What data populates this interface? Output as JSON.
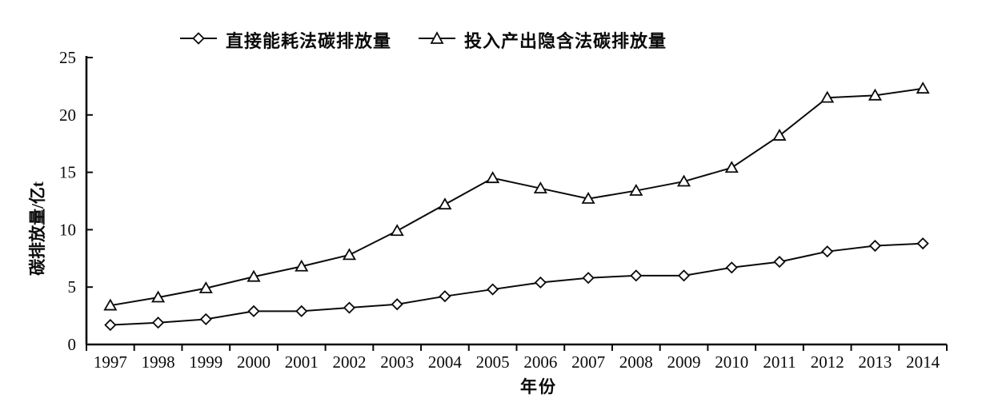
{
  "chart_data": {
    "type": "line",
    "title": "",
    "xlabel": "年份",
    "ylabel": "碳排放量/亿t",
    "categories": [
      1997,
      1998,
      1999,
      2000,
      2001,
      2002,
      2003,
      2004,
      2005,
      2006,
      2007,
      2008,
      2009,
      2010,
      2011,
      2012,
      2013,
      2014
    ],
    "ylim": [
      0,
      25
    ],
    "yticks": [
      0,
      5,
      10,
      15,
      20,
      25
    ],
    "grid": false,
    "legend_position": "top",
    "line_color": "#0a0a0a",
    "marker_fill": "#ffffff",
    "series": [
      {
        "name": "直接能耗法碳排放量",
        "marker": "diamond",
        "values": [
          1.7,
          1.9,
          2.2,
          2.9,
          2.9,
          3.2,
          3.5,
          4.2,
          4.8,
          5.4,
          5.8,
          6.0,
          6.0,
          6.7,
          7.2,
          8.1,
          8.6,
          8.8
        ]
      },
      {
        "name": "投入产出隐含法碳排放量",
        "marker": "triangle",
        "values": [
          3.4,
          4.1,
          4.9,
          5.9,
          6.8,
          7.8,
          9.9,
          12.2,
          14.5,
          13.6,
          12.7,
          13.4,
          14.2,
          15.4,
          18.2,
          21.5,
          21.7,
          22.3
        ]
      }
    ]
  }
}
